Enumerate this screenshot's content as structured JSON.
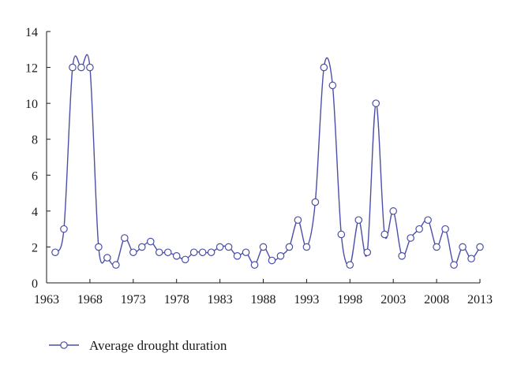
{
  "chart_data": {
    "type": "line",
    "title": "",
    "xlabel": "",
    "ylabel": "",
    "xlim": [
      1963,
      2013
    ],
    "ylim": [
      0,
      14
    ],
    "x_ticks": [
      1963,
      1968,
      1973,
      1978,
      1983,
      1988,
      1993,
      1998,
      2003,
      2008,
      2013
    ],
    "y_ticks": [
      0,
      2,
      4,
      6,
      8,
      10,
      12,
      14
    ],
    "grid": false,
    "legend_position": "bottom-left",
    "series": [
      {
        "name": "Average drought duration",
        "color": "#4b4fa8",
        "marker": "open-circle",
        "x": [
          1964,
          1965,
          1966,
          1967,
          1968,
          1969,
          1970,
          1971,
          1972,
          1973,
          1974,
          1975,
          1976,
          1977,
          1978,
          1979,
          1980,
          1981,
          1982,
          1983,
          1984,
          1985,
          1986,
          1987,
          1988,
          1989,
          1990,
          1991,
          1992,
          1993,
          1994,
          1995,
          1996,
          1997,
          1998,
          1999,
          2000,
          2001,
          2002,
          2003,
          2004,
          2005,
          2006,
          2007,
          2008,
          2009,
          2010,
          2011,
          2012,
          2013
        ],
        "values": [
          1.7,
          3.0,
          12.0,
          12.0,
          12.0,
          2.0,
          1.4,
          1.0,
          2.5,
          1.7,
          2.0,
          2.3,
          1.7,
          1.7,
          1.5,
          1.3,
          1.7,
          1.7,
          1.7,
          2.0,
          2.0,
          1.5,
          1.7,
          1.0,
          2.0,
          1.25,
          1.5,
          2.0,
          3.5,
          2.0,
          4.5,
          12.0,
          11.0,
          2.7,
          1.0,
          3.5,
          1.7,
          10.0,
          2.7,
          4.0,
          1.5,
          2.5,
          3.0,
          3.5,
          2.0,
          3.0,
          1.0,
          2.0,
          1.35,
          2.0
        ]
      }
    ]
  }
}
